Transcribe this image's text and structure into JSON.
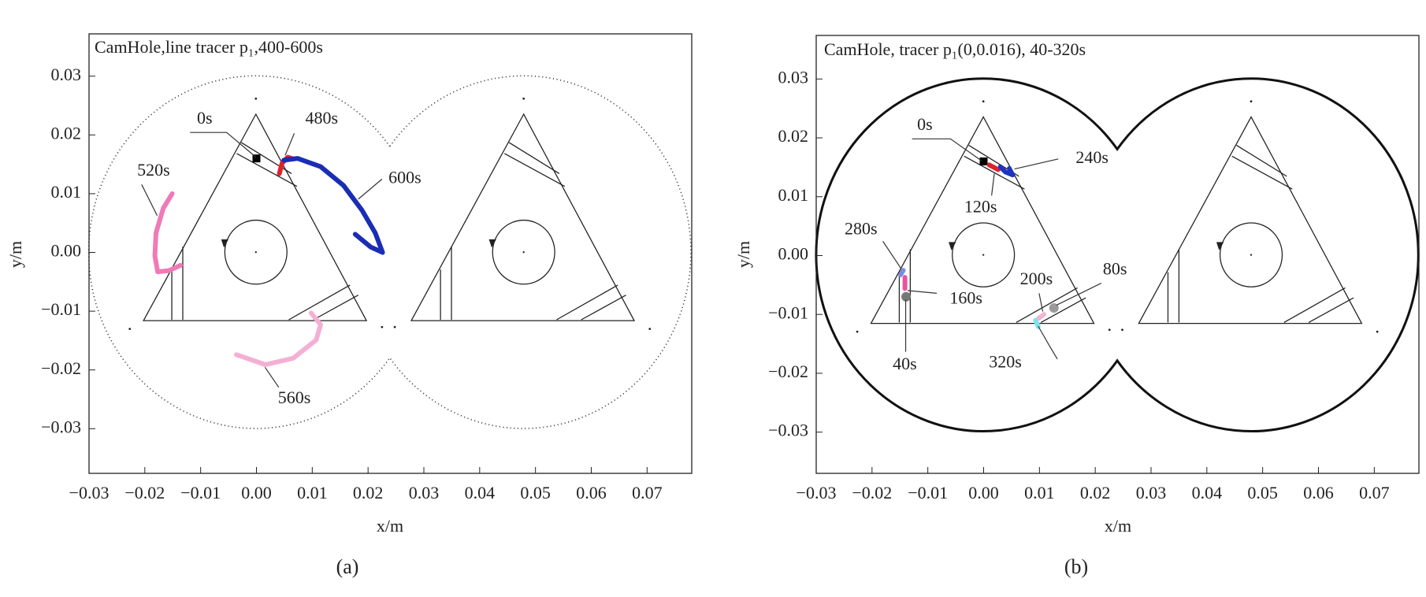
{
  "chart_data": [
    {
      "type": "line",
      "title": "CamHole,line tracer p₁,400-600s",
      "xlabel": "x/m",
      "ylabel": "y/m",
      "caption": "(a)",
      "xlim": [
        -0.03,
        0.078
      ],
      "ylim": [
        -0.0376,
        0.0372
      ],
      "xticks": [
        {
          "value": -0.03,
          "label": "−0.03"
        },
        {
          "value": -0.02,
          "label": "−0.02"
        },
        {
          "value": -0.01,
          "label": "−0.01"
        },
        {
          "value": 0,
          "label": "0.00"
        },
        {
          "value": 0.01,
          "label": "0.01"
        },
        {
          "value": 0.02,
          "label": "0.02"
        },
        {
          "value": 0.03,
          "label": "0.03"
        },
        {
          "value": 0.04,
          "label": "0.04"
        },
        {
          "value": 0.05,
          "label": "0.05"
        },
        {
          "value": 0.06,
          "label": "0.06"
        },
        {
          "value": 0.07,
          "label": "0.07"
        }
      ],
      "yticks": [
        {
          "value": -0.03,
          "label": "−0.03"
        },
        {
          "value": -0.02,
          "label": "−0.02"
        },
        {
          "value": -0.01,
          "label": "−0.01"
        },
        {
          "value": 0,
          "label": "0.00"
        },
        {
          "value": 0.01,
          "label": "0.01"
        },
        {
          "value": 0.02,
          "label": "0.02"
        },
        {
          "value": 0.03,
          "label": "0.03"
        }
      ],
      "series": [
        {
          "name": "0s",
          "color": "#000000",
          "marker": "square",
          "x": [
            0
          ],
          "y": [
            0.016
          ]
        },
        {
          "name": "480s",
          "color": "#e0202a",
          "x": [
            0.0041,
            0.0046,
            0.0056,
            0.0066
          ],
          "y": [
            0.0134,
            0.0152,
            0.0162,
            0.0159
          ]
        },
        {
          "name": "520s",
          "color": "#f07ab8",
          "x": [
            -0.0151,
            -0.0167,
            -0.018,
            -0.0182,
            -0.0177,
            -0.0157,
            -0.0136
          ],
          "y": [
            0.01,
            0.0075,
            0.0033,
            -0.0006,
            -0.0033,
            -0.0031,
            -0.0022
          ]
        },
        {
          "name": "560s",
          "color": "#f4b0d4",
          "x": [
            -0.0036,
            0.0016,
            0.0066,
            0.0107,
            0.0115,
            0.0098
          ],
          "y": [
            -0.0174,
            -0.0191,
            -0.018,
            -0.0149,
            -0.0123,
            -0.0103
          ]
        },
        {
          "name": "600s",
          "color": "#1a2db5",
          "x": [
            0.0049,
            0.0074,
            0.0115,
            0.0156,
            0.0189,
            0.0213,
            0.0226,
            0.0205,
            0.0177
          ],
          "y": [
            0.0157,
            0.016,
            0.0146,
            0.0114,
            0.0072,
            0.0033,
            0,
            0.0009,
            0.0031
          ]
        }
      ]
    },
    {
      "type": "line",
      "title": "CamHole, tracer p₁(0,0.016), 40-320s",
      "xlabel": "x/m",
      "ylabel": "y/m",
      "caption": "(b)",
      "xlim": [
        -0.03,
        0.078
      ],
      "ylim": [
        -0.037,
        0.0374
      ],
      "xticks": [
        {
          "value": -0.03,
          "label": "−0.03"
        },
        {
          "value": -0.02,
          "label": "−0.02"
        },
        {
          "value": -0.01,
          "label": "−0.01"
        },
        {
          "value": 0,
          "label": "0.00"
        },
        {
          "value": 0.01,
          "label": "0.01"
        },
        {
          "value": 0.02,
          "label": "0.02"
        },
        {
          "value": 0.03,
          "label": "0.03"
        },
        {
          "value": 0.04,
          "label": "0.04"
        },
        {
          "value": 0.05,
          "label": "0.05"
        },
        {
          "value": 0.06,
          "label": "0.06"
        },
        {
          "value": 0.07,
          "label": "0.07"
        }
      ],
      "yticks": [
        {
          "value": -0.03,
          "label": "−0.03"
        },
        {
          "value": -0.02,
          "label": "−0.02"
        },
        {
          "value": -0.01,
          "label": "−0.01"
        },
        {
          "value": 0,
          "label": "0.00"
        },
        {
          "value": 0.01,
          "label": "0.01"
        },
        {
          "value": 0.02,
          "label": "0.02"
        },
        {
          "value": 0.03,
          "label": "0.03"
        }
      ],
      "series": [
        {
          "name": "0s",
          "color": "#000000",
          "marker": "square",
          "x": [
            0
          ],
          "y": [
            0.016
          ]
        },
        {
          "name": "40s",
          "color": "#777777",
          "marker": "circle",
          "x": [
            -0.0139
          ],
          "y": [
            -0.007
          ]
        },
        {
          "name": "80s",
          "color": "#9a9a9a",
          "marker": "circle",
          "x": [
            0.0126
          ],
          "y": [
            -0.0089
          ]
        },
        {
          "name": "120s",
          "color": "#e0202a",
          "x": [
            0.001,
            0.0026
          ],
          "y": [
            0.0154,
            0.0146
          ]
        },
        {
          "name": "160s",
          "color": "#e8559f",
          "x": [
            -0.0141,
            -0.0141
          ],
          "y": [
            -0.0037,
            -0.0056
          ]
        },
        {
          "name": "200s",
          "color": "#f2b6d2",
          "x": [
            0.0108,
            0.0098
          ],
          "y": [
            -0.01,
            -0.0107
          ]
        },
        {
          "name": "240s",
          "color": "#1c34c0",
          "x": [
            0.003,
            0.0039,
            0.0052,
            0.0046
          ],
          "y": [
            0.0151,
            0.0142,
            0.0137,
            0.0148
          ]
        },
        {
          "name": "280s",
          "color": "#7a8fe0",
          "x": [
            -0.0144,
            -0.0149
          ],
          "y": [
            -0.0025,
            -0.0033
          ]
        },
        {
          "name": "320s",
          "color": "#7fe3ef",
          "x": [
            0.0093,
            0.0098
          ],
          "y": [
            -0.011,
            -0.0121
          ]
        }
      ]
    }
  ]
}
